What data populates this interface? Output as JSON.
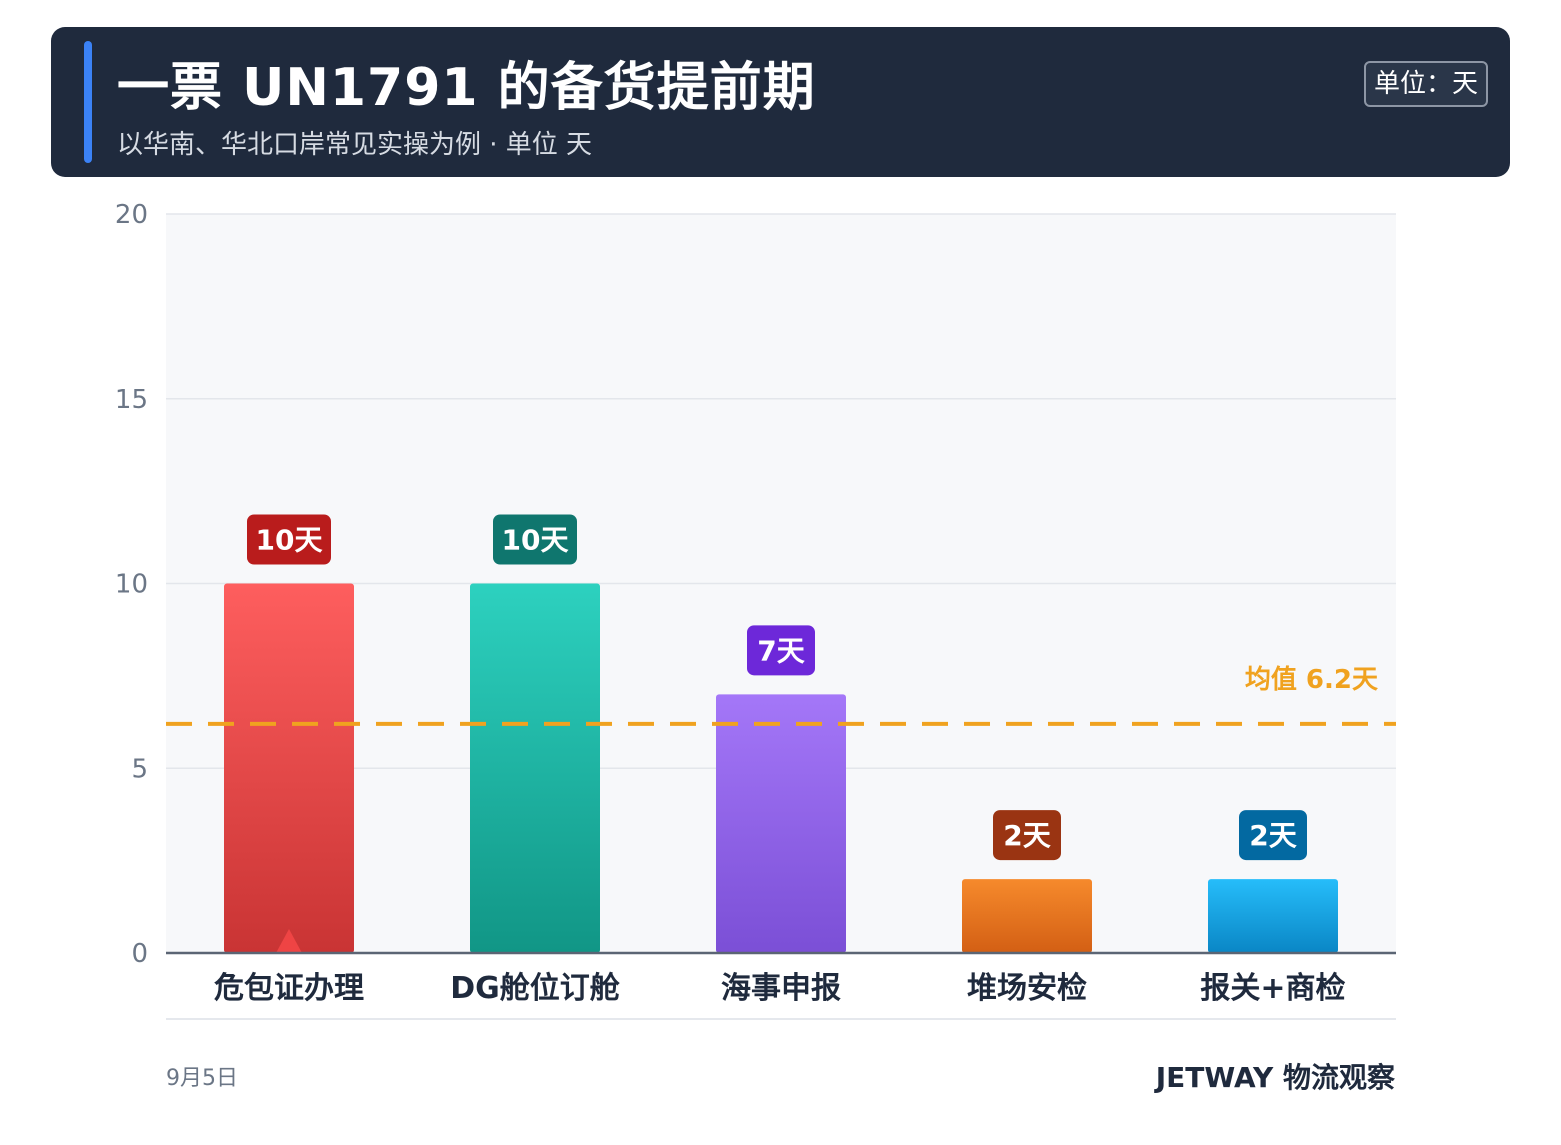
{
  "header": {
    "title": "一票 UN1791 的备货提前期",
    "subtitle": "以华南、华北口岸常见实操为例 · 单位 天",
    "unit_badge": "单位：天"
  },
  "chart_data": {
    "type": "bar",
    "categories": [
      "危包证办理",
      "DG舱位订舱",
      "海事申报",
      "堆场安检",
      "报关+商检"
    ],
    "values": [
      10,
      10,
      7,
      2,
      2
    ],
    "value_labels": [
      "10天",
      "10天",
      "7天",
      "2天",
      "2天"
    ],
    "ylim": [
      0,
      20
    ],
    "yticks": [
      0,
      5,
      10,
      15,
      20
    ],
    "grid": true,
    "colors": {
      "bars": [
        [
          "#fe5e5e",
          "#c93434"
        ],
        [
          "#2dd1bf",
          "#119686"
        ],
        [
          "#a477f8",
          "#7b4fd6"
        ],
        [
          "#f68a2c",
          "#d35f14"
        ],
        [
          "#26bdfa",
          "#0a86c5"
        ]
      ],
      "labels": [
        "#b91c1c",
        "#0f766e",
        "#6d28d9",
        "#9a3412",
        "#0369a1"
      ],
      "mean_line": "#f0a21f",
      "marker": "#ef4444"
    },
    "mean": {
      "value": 6.2,
      "label": "均值 6.2天"
    },
    "marker_index": 0
  },
  "footer": {
    "date": "9月5日",
    "brand": "JETWAY 物流观察"
  }
}
